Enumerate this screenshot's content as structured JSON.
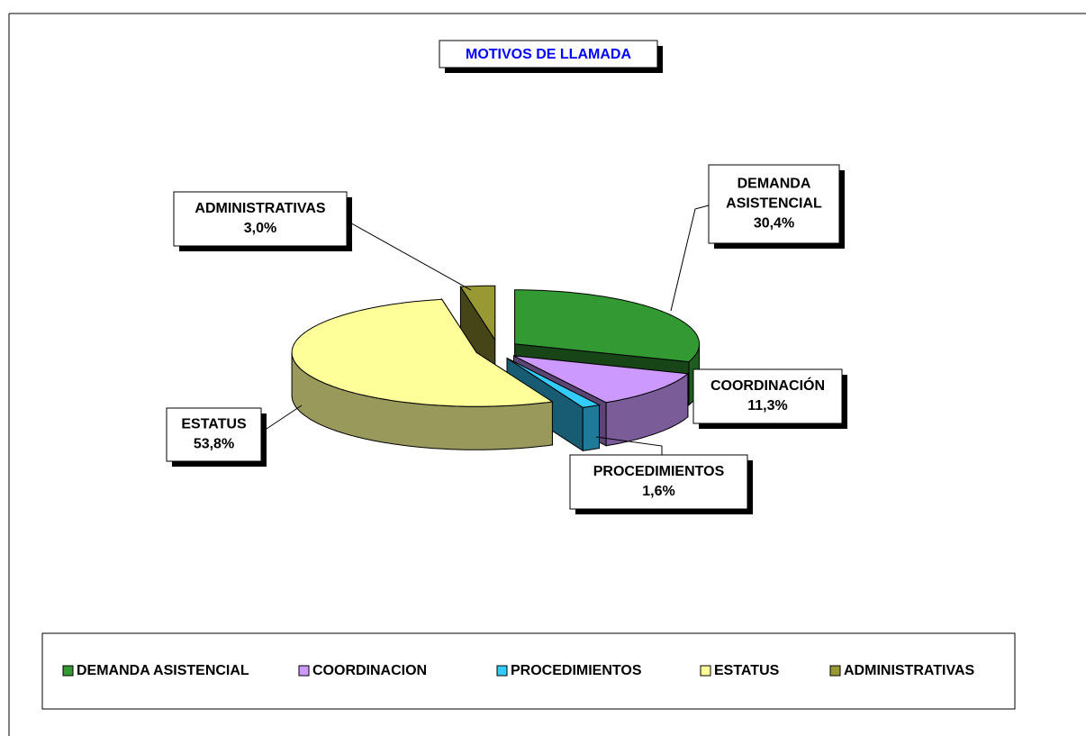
{
  "chart_data": {
    "type": "pie",
    "title": "MOTIVOS DE LLAMADA",
    "categories": [
      "DEMANDA ASISTENCIAL",
      "COORDINACION",
      "PROCEDIMIENTOS",
      "ESTATUS",
      "ADMINISTRATIVAS"
    ],
    "slice_labels": [
      "DEMANDA ASISTENCIAL",
      "COORDINACIÓN",
      "PROCEDIMIENTOS",
      "ESTATUS",
      "ADMINISTRATIVAS"
    ],
    "values": [
      30.4,
      11.3,
      1.6,
      53.8,
      3.0
    ],
    "value_labels": [
      "30,4%",
      "11,3%",
      "1,6%",
      "53,8%",
      "3,0%"
    ],
    "colors": [
      "#339933",
      "#cc99ff",
      "#33ccff",
      "#ffff99",
      "#999933"
    ],
    "legend": "bottom"
  }
}
